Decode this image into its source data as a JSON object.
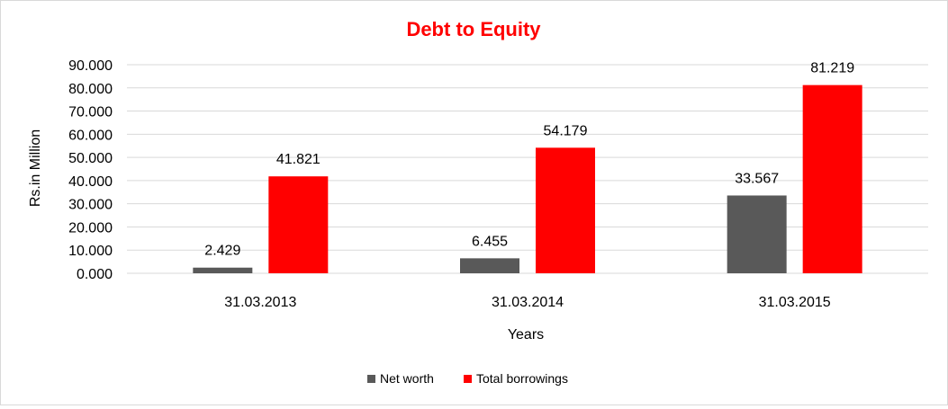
{
  "chart_data": {
    "type": "bar",
    "title": "Debt to Equity",
    "title_color": "#ff0000",
    "xlabel": "Years",
    "ylabel": "Rs.in Million",
    "categories": [
      "31.03.2013",
      "31.03.2014",
      "31.03.2015"
    ],
    "series": [
      {
        "name": "Net worth",
        "color": "#595959",
        "values": [
          2.429,
          6.455,
          33.567
        ],
        "labels": [
          "2.429",
          "6.455",
          "33.567"
        ]
      },
      {
        "name": "Total borrowings",
        "color": "#ff0000",
        "values": [
          41.821,
          54.179,
          81.219
        ],
        "labels": [
          "41.821",
          "54.179",
          "81.219"
        ]
      }
    ],
    "ylim": [
      0,
      90
    ],
    "yticks": [
      0,
      10,
      20,
      30,
      40,
      50,
      60,
      70,
      80,
      90
    ],
    "ytick_labels": [
      "0.000",
      "10.000",
      "20.000",
      "30.000",
      "40.000",
      "50.000",
      "60.000",
      "70.000",
      "80.000",
      "90.000"
    ],
    "grid": true,
    "legend_position": "bottom"
  }
}
